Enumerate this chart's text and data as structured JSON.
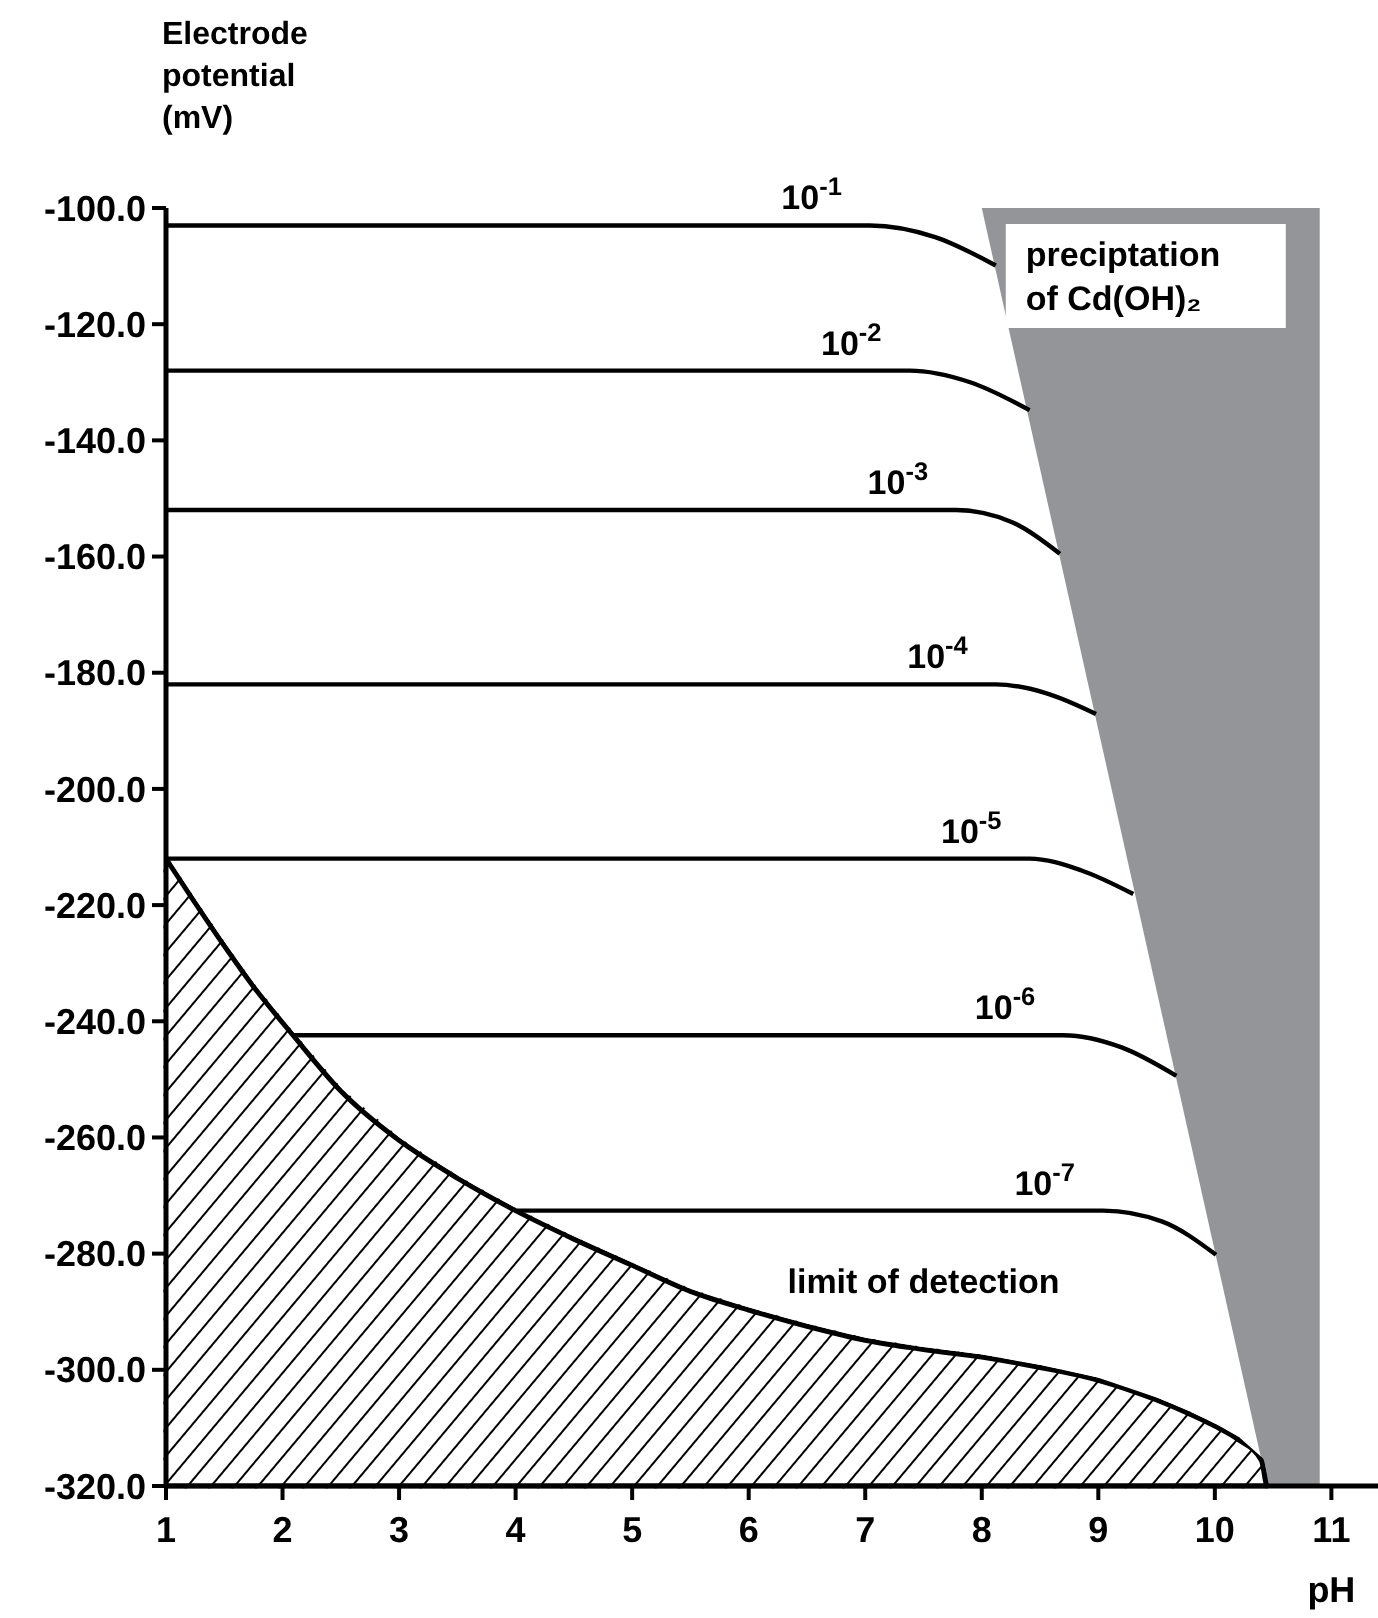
{
  "chart_data": {
    "type": "line",
    "xlabel": "pH",
    "ylabel": "Electrode potential (mV)",
    "xlim": [
      1,
      11.4
    ],
    "ylim": [
      -320,
      -100
    ],
    "xticks": [
      1,
      2,
      3,
      4,
      5,
      6,
      7,
      8,
      9,
      10,
      11
    ],
    "yticks": [
      {
        "value": -100,
        "label": "-100.0"
      },
      {
        "value": -120,
        "label": "-120.0"
      },
      {
        "value": -140,
        "label": "-140.0"
      },
      {
        "value": -160,
        "label": "-160.0"
      },
      {
        "value": -180,
        "label": "-180.0"
      },
      {
        "value": -200,
        "label": "-200.0"
      },
      {
        "value": -220,
        "label": "-220.0"
      },
      {
        "value": -240,
        "label": "-240.0"
      },
      {
        "value": -260,
        "label": "-260.0"
      },
      {
        "value": -280,
        "label": "-280.0"
      },
      {
        "value": -300,
        "label": "-300.0"
      },
      {
        "value": -320,
        "label": "-320.0"
      }
    ],
    "marker": "none",
    "line_style": "solid",
    "series": [
      {
        "type": "area",
        "name": "preciptation of Cd(OH)₂",
        "color": "#939598",
        "x": [
          8.0,
          10.9,
          10.9,
          10.45
        ],
        "values": [
          -100,
          -100,
          -320,
          -320
        ]
      },
      {
        "type": "area",
        "name": "limit of detection",
        "color": "#000000",
        "x": [
          1,
          1.25,
          1.5,
          1.75,
          2.09,
          2.5,
          3,
          3.5,
          4,
          4.5,
          5,
          5.5,
          6,
          6.5,
          7,
          7.5,
          8,
          8.5,
          9,
          9.5,
          9.75,
          10,
          10.2,
          10.4,
          10.45,
          1
        ],
        "values": [
          -212,
          -219.6,
          -227,
          -234,
          -242.4,
          -252,
          -260.5,
          -267,
          -272.6,
          -277.5,
          -282,
          -286.5,
          -289.7,
          -292.5,
          -294.9,
          -296.5,
          -297.8,
          -299.6,
          -301.8,
          -305.2,
          -307.3,
          -309.7,
          -312,
          -315.6,
          -320,
          -320
        ]
      },
      {
        "name": "10$^{-1}$",
        "color": "#000000",
        "x": [
          1,
          7.04,
          7.6,
          8.12
        ],
        "values": [
          -103,
          -103,
          -105,
          -109.9
        ]
      },
      {
        "name": "10$^{-2}$",
        "color": "#000000",
        "x": [
          1,
          7.38,
          7.9,
          8.41
        ],
        "values": [
          -128,
          -128,
          -130,
          -134.8
        ]
      },
      {
        "name": "10$^{-3}$",
        "color": "#000000",
        "x": [
          1,
          7.78,
          8.25,
          8.67
        ],
        "values": [
          -152,
          -152,
          -154,
          -159.5
        ]
      },
      {
        "name": "10$^{-4}$",
        "color": "#000000",
        "x": [
          1,
          8.12,
          8.55,
          8.98
        ],
        "values": [
          -182,
          -182,
          -183.5,
          -187.1
        ]
      },
      {
        "name": "10$^{-5}$",
        "color": "#000000",
        "x": [
          1,
          8.41,
          8.85,
          9.3
        ],
        "values": [
          -212,
          -212,
          -214,
          -218.1
        ]
      },
      {
        "name": "10$^{-6}$",
        "color": "#000000",
        "x": [
          2.09,
          8.7,
          9.2,
          9.67
        ],
        "values": [
          -242.4,
          -242.4,
          -244.5,
          -249.4
        ]
      },
      {
        "name": "10$^{-7}$",
        "color": "#000000",
        "x": [
          4,
          9.04,
          9.55,
          10.01
        ],
        "values": [
          -272.6,
          -272.6,
          -274.5,
          -280.2
        ]
      }
    ]
  }
}
